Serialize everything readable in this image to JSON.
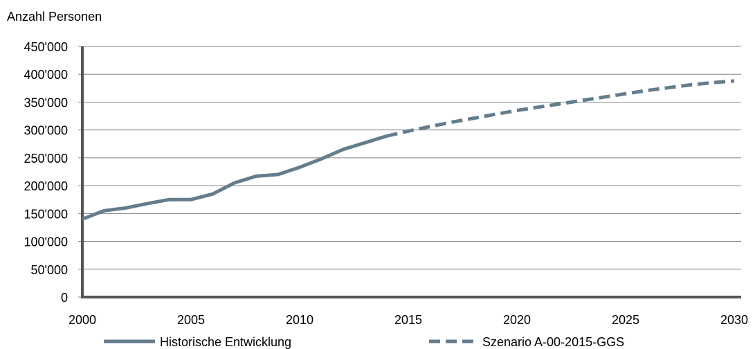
{
  "chart_data": {
    "type": "line",
    "title": "",
    "ylabel": "Anzahl Personen",
    "xlabel": "",
    "xlim": [
      2000,
      2030
    ],
    "ylim": [
      0,
      450000
    ],
    "x_ticks": [
      2000,
      2005,
      2010,
      2015,
      2020,
      2025,
      2030
    ],
    "x_tick_labels": [
      "2000",
      "2005",
      "2010",
      "2015",
      "2020",
      "2025",
      "2030"
    ],
    "y_ticks": [
      0,
      50000,
      100000,
      150000,
      200000,
      250000,
      300000,
      350000,
      400000,
      450000
    ],
    "y_tick_labels": [
      "0",
      "50'000",
      "100'000",
      "150'000",
      "200'000",
      "250'000",
      "300'000",
      "350'000",
      "400'000",
      "450'000"
    ],
    "grid": "horizontal",
    "legend_position": "bottom",
    "series": [
      {
        "name": "Historische Entwicklung",
        "style": "solid",
        "color": "#647D8C",
        "x": [
          2000,
          2001,
          2002,
          2003,
          2004,
          2005,
          2006,
          2007,
          2008,
          2009,
          2010,
          2011,
          2012,
          2013,
          2014
        ],
        "y": [
          140000,
          155000,
          160000,
          168000,
          175000,
          175000,
          185000,
          205000,
          217000,
          220000,
          233000,
          248000,
          265000,
          277000,
          289000
        ]
      },
      {
        "name": "Szenario A-00-2015-GGS",
        "style": "dashed",
        "color": "#647D8C",
        "x": [
          2014,
          2015,
          2016,
          2017,
          2018,
          2019,
          2020,
          2021,
          2022,
          2023,
          2024,
          2025,
          2026,
          2027,
          2028,
          2029,
          2030
        ],
        "y": [
          289000,
          298000,
          306000,
          314000,
          321000,
          328000,
          335000,
          341000,
          347000,
          353000,
          359000,
          365000,
          371000,
          376000,
          381000,
          385000,
          388000
        ]
      }
    ]
  }
}
